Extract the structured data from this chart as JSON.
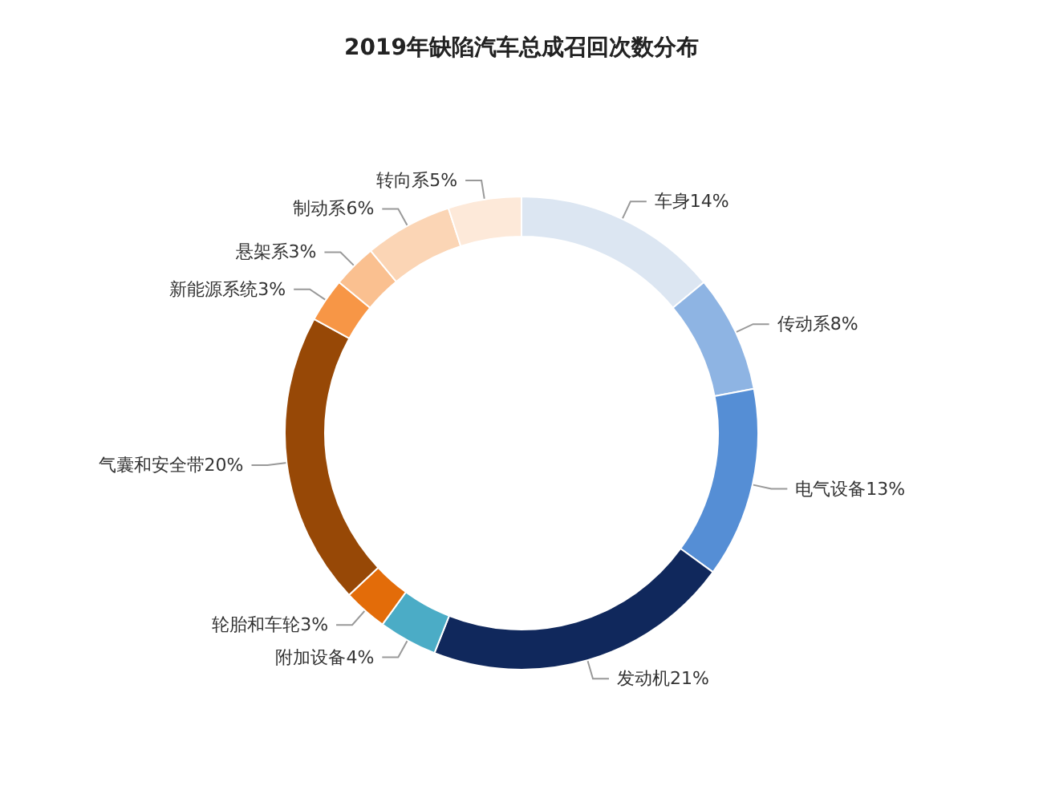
{
  "chart_data": {
    "type": "donut",
    "title": "2019年缺陷汽车总成召回次数分布",
    "categories": [
      "车身",
      "传动系",
      "电气设备",
      "发动机",
      "附加设备",
      "轮胎和车轮",
      "气囊和安全带",
      "新能源系统",
      "悬架系",
      "制动系",
      "转向系"
    ],
    "values": [
      14,
      8,
      13,
      21,
      4,
      3,
      20,
      3,
      3,
      6,
      5
    ],
    "value_labels": [
      "14%",
      "8%",
      "13%",
      "21%",
      "4%",
      "3%",
      "20%",
      "3%",
      "3%",
      "6%",
      "5%"
    ],
    "colors": [
      "#dce6f2",
      "#8eb4e3",
      "#558ed5",
      "#10285c",
      "#4bacc6",
      "#e36c09",
      "#974806",
      "#f79646",
      "#fac090",
      "#fbd5b5",
      "#fde9d9"
    ],
    "legend": false
  }
}
